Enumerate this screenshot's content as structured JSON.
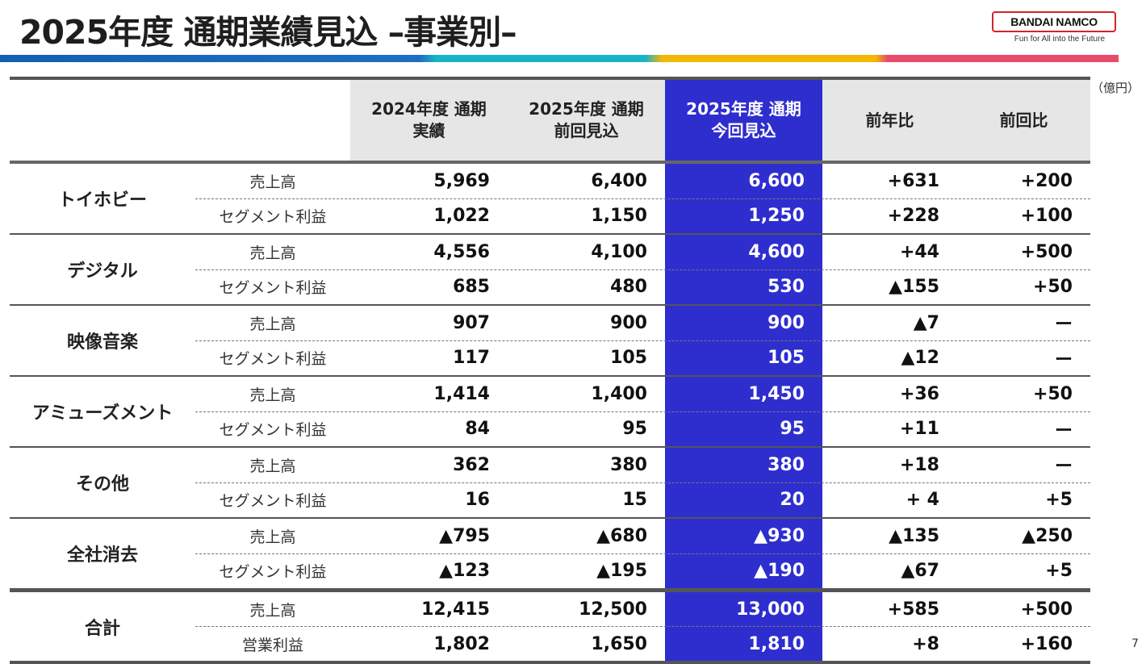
{
  "title": "2025年度 通期業績見込 –事業別–",
  "logo": {
    "brand": "BANDAI NAMCO",
    "tagline": "Fun for All into the Future"
  },
  "unit": "（億円）",
  "page_number": "7",
  "colors": {
    "highlight": "#2e2ecf",
    "stripe": [
      "#0f5fb3",
      "#19b3c8",
      "#f2b705",
      "#e84a6b"
    ]
  },
  "headers": [
    "2024年度 通期\n実績",
    "2025年度 通期\n前回見込",
    "2025年度 通期\n今回見込",
    "前年比",
    "前回比"
  ],
  "segments": [
    {
      "name": "トイホビー",
      "rows": [
        {
          "label": "売上高",
          "values": [
            "5,969",
            "6,400",
            "6,600",
            "+631",
            "+200"
          ]
        },
        {
          "label": "セグメント利益",
          "values": [
            "1,022",
            "1,150",
            "1,250",
            "+228",
            "+100"
          ]
        }
      ]
    },
    {
      "name": "デジタル",
      "rows": [
        {
          "label": "売上高",
          "values": [
            "4,556",
            "4,100",
            "4,600",
            "+44",
            "+500"
          ]
        },
        {
          "label": "セグメント利益",
          "values": [
            "685",
            "480",
            "530",
            "▲155",
            "+50"
          ]
        }
      ]
    },
    {
      "name": "映像音楽",
      "rows": [
        {
          "label": "売上高",
          "values": [
            "907",
            "900",
            "900",
            "▲7",
            "ー"
          ]
        },
        {
          "label": "セグメント利益",
          "values": [
            "117",
            "105",
            "105",
            "▲12",
            "ー"
          ]
        }
      ]
    },
    {
      "name": "アミューズメント",
      "rows": [
        {
          "label": "売上高",
          "values": [
            "1,414",
            "1,400",
            "1,450",
            "+36",
            "+50"
          ]
        },
        {
          "label": "セグメント利益",
          "values": [
            "84",
            "95",
            "95",
            "+11",
            "ー"
          ]
        }
      ]
    },
    {
      "name": "その他",
      "rows": [
        {
          "label": "売上高",
          "values": [
            "362",
            "380",
            "380",
            "+18",
            "ー"
          ]
        },
        {
          "label": "セグメント利益",
          "values": [
            "16",
            "15",
            "20",
            "+ 4",
            "+5"
          ]
        }
      ]
    },
    {
      "name": "全社消去",
      "rows": [
        {
          "label": "売上高",
          "values": [
            "▲795",
            "▲680",
            "▲930",
            "▲135",
            "▲250"
          ]
        },
        {
          "label": "セグメント利益",
          "values": [
            "▲123",
            "▲195",
            "▲190",
            "▲67",
            "+5"
          ]
        }
      ]
    },
    {
      "name": "合計",
      "rows": [
        {
          "label": "売上高",
          "values": [
            "12,415",
            "12,500",
            "13,000",
            "+585",
            "+500"
          ]
        },
        {
          "label": "営業利益",
          "values": [
            "1,802",
            "1,650",
            "1,810",
            "+8",
            "+160"
          ]
        }
      ]
    }
  ]
}
